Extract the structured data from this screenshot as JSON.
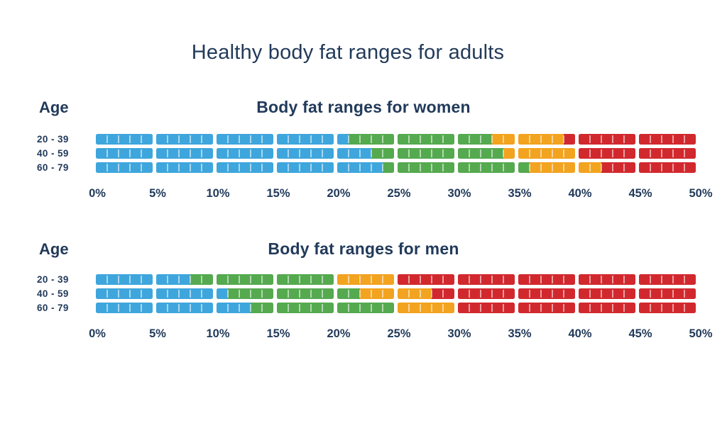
{
  "title": "Healthy body fat ranges for adults",
  "colors": {
    "navy_text": "#223a5a",
    "blue": "#3ea6dc",
    "green": "#55a94f",
    "orange": "#f2a31f",
    "red": "#d1282e",
    "background": "#ffffff"
  },
  "chart_data": [
    {
      "type": "bar",
      "title": "Body fat ranges for women",
      "age_label": "Age",
      "xlim": [
        0,
        50
      ],
      "x_tick_interval_pct": 5,
      "block_size_pct": 5,
      "x_ticks": [
        "0%",
        "5%",
        "10%",
        "15%",
        "20%",
        "25%",
        "30%",
        "35%",
        "40%",
        "45%",
        "50%"
      ],
      "segment_colors": [
        "#3ea6dc",
        "#55a94f",
        "#f2a31f",
        "#d1282e"
      ],
      "rows": [
        {
          "age": "20 - 39",
          "boundaries": [
            21,
            33,
            39
          ]
        },
        {
          "age": "40 - 59",
          "boundaries": [
            23,
            34,
            40
          ]
        },
        {
          "age": "60 - 79",
          "boundaries": [
            24,
            36,
            42
          ]
        }
      ]
    },
    {
      "type": "bar",
      "title": "Body fat ranges for men",
      "age_label": "Age",
      "xlim": [
        0,
        50
      ],
      "x_tick_interval_pct": 5,
      "block_size_pct": 5,
      "x_ticks": [
        "0%",
        "5%",
        "10%",
        "15%",
        "20%",
        "25%",
        "30%",
        "35%",
        "40%",
        "45%",
        "50%"
      ],
      "segment_colors": [
        "#3ea6dc",
        "#55a94f",
        "#f2a31f",
        "#d1282e"
      ],
      "rows": [
        {
          "age": "20 - 39",
          "boundaries": [
            8,
            20,
            25
          ]
        },
        {
          "age": "40 - 59",
          "boundaries": [
            11,
            22,
            28
          ]
        },
        {
          "age": "60 - 79",
          "boundaries": [
            13,
            25,
            30
          ]
        }
      ]
    }
  ]
}
